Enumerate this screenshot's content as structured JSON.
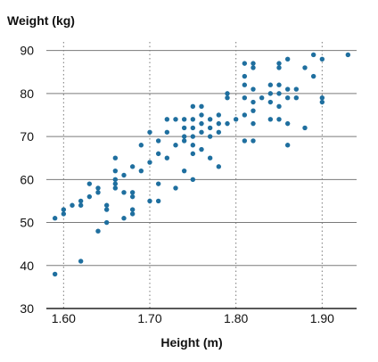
{
  "chart_data": {
    "type": "scatter",
    "title": "",
    "xlabel": "Height (m)",
    "ylabel": "Weight (kg)",
    "xlim": [
      1.58,
      1.94
    ],
    "ylim": [
      30,
      92
    ],
    "x_ticks": [
      1.6,
      1.7,
      1.8,
      1.9
    ],
    "x_tick_labels": [
      "1.60",
      "1.70",
      "1.80",
      "1.90"
    ],
    "y_ticks": [
      30,
      40,
      50,
      60,
      70,
      80,
      90
    ],
    "y_tick_labels": [
      "30",
      "40",
      "50",
      "60",
      "70",
      "80",
      "90"
    ],
    "grid": {
      "horizontal": "solid",
      "vertical": "dotted"
    },
    "legend": "none",
    "colors": {
      "points": "#1f6f9f",
      "grid_h": "#7a7a7a",
      "grid_v": "#7a7a7a",
      "axis": "#222222",
      "text": "#111111"
    },
    "series": [
      {
        "points": [
          [
            1.59,
            38
          ],
          [
            1.59,
            51
          ],
          [
            1.6,
            52
          ],
          [
            1.6,
            53
          ],
          [
            1.61,
            54
          ],
          [
            1.62,
            41
          ],
          [
            1.62,
            55
          ],
          [
            1.62,
            54
          ],
          [
            1.63,
            56
          ],
          [
            1.63,
            59
          ],
          [
            1.64,
            48
          ],
          [
            1.64,
            57
          ],
          [
            1.64,
            58
          ],
          [
            1.65,
            50
          ],
          [
            1.65,
            53
          ],
          [
            1.65,
            54
          ],
          [
            1.66,
            58
          ],
          [
            1.66,
            59
          ],
          [
            1.66,
            60
          ],
          [
            1.66,
            62
          ],
          [
            1.66,
            65
          ],
          [
            1.67,
            51
          ],
          [
            1.67,
            57
          ],
          [
            1.67,
            61
          ],
          [
            1.68,
            52
          ],
          [
            1.68,
            53
          ],
          [
            1.68,
            56
          ],
          [
            1.68,
            57
          ],
          [
            1.68,
            63
          ],
          [
            1.69,
            62
          ],
          [
            1.69,
            68
          ],
          [
            1.7,
            55
          ],
          [
            1.7,
            64
          ],
          [
            1.7,
            71
          ],
          [
            1.71,
            55
          ],
          [
            1.71,
            59
          ],
          [
            1.71,
            69
          ],
          [
            1.71,
            66
          ],
          [
            1.72,
            65
          ],
          [
            1.72,
            71
          ],
          [
            1.72,
            74
          ],
          [
            1.73,
            58
          ],
          [
            1.73,
            68
          ],
          [
            1.73,
            74
          ],
          [
            1.74,
            62
          ],
          [
            1.74,
            69
          ],
          [
            1.74,
            70
          ],
          [
            1.74,
            72
          ],
          [
            1.74,
            74
          ],
          [
            1.75,
            60
          ],
          [
            1.75,
            66
          ],
          [
            1.75,
            68
          ],
          [
            1.75,
            70
          ],
          [
            1.75,
            72
          ],
          [
            1.75,
            74
          ],
          [
            1.75,
            77
          ],
          [
            1.76,
            67
          ],
          [
            1.76,
            71
          ],
          [
            1.76,
            73
          ],
          [
            1.76,
            75
          ],
          [
            1.76,
            77
          ],
          [
            1.77,
            65
          ],
          [
            1.77,
            70
          ],
          [
            1.77,
            72
          ],
          [
            1.77,
            74
          ],
          [
            1.78,
            63
          ],
          [
            1.78,
            71
          ],
          [
            1.78,
            73
          ],
          [
            1.78,
            75
          ],
          [
            1.79,
            73
          ],
          [
            1.79,
            79
          ],
          [
            1.79,
            80
          ],
          [
            1.8,
            74
          ],
          [
            1.81,
            69
          ],
          [
            1.81,
            75
          ],
          [
            1.81,
            79
          ],
          [
            1.81,
            82
          ],
          [
            1.81,
            84
          ],
          [
            1.81,
            87
          ],
          [
            1.82,
            69
          ],
          [
            1.82,
            73
          ],
          [
            1.82,
            76
          ],
          [
            1.82,
            78
          ],
          [
            1.82,
            81
          ],
          [
            1.82,
            86
          ],
          [
            1.82,
            87
          ],
          [
            1.83,
            79
          ],
          [
            1.84,
            74
          ],
          [
            1.84,
            78
          ],
          [
            1.84,
            80
          ],
          [
            1.84,
            82
          ],
          [
            1.85,
            74
          ],
          [
            1.85,
            77
          ],
          [
            1.85,
            80
          ],
          [
            1.85,
            82
          ],
          [
            1.85,
            86
          ],
          [
            1.85,
            87
          ],
          [
            1.86,
            68
          ],
          [
            1.86,
            73
          ],
          [
            1.86,
            79
          ],
          [
            1.86,
            81
          ],
          [
            1.86,
            88
          ],
          [
            1.87,
            79
          ],
          [
            1.87,
            81
          ],
          [
            1.88,
            72
          ],
          [
            1.88,
            86
          ],
          [
            1.89,
            84
          ],
          [
            1.89,
            89
          ],
          [
            1.9,
            78
          ],
          [
            1.9,
            79
          ],
          [
            1.9,
            88
          ],
          [
            1.93,
            89
          ]
        ]
      }
    ]
  }
}
